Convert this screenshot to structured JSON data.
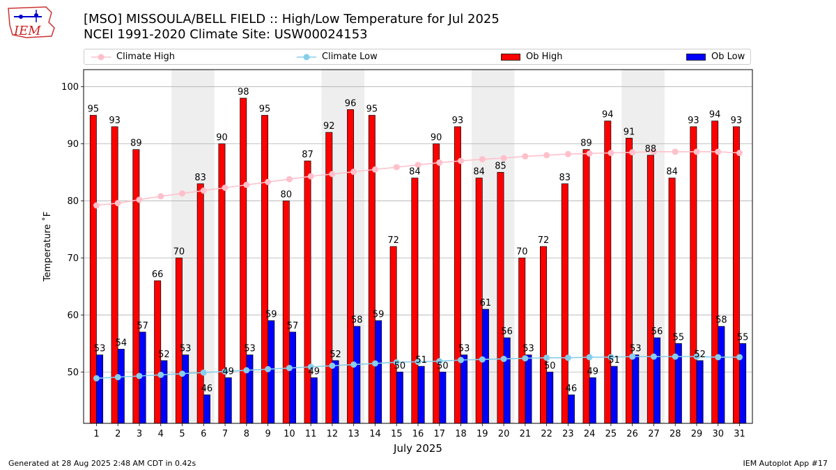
{
  "header": {
    "logo_text": "IEM",
    "title_line1": "[MSO] MISSOULA/BELL FIELD :: High/Low Temperature for Jul 2025",
    "title_line2": "NCEI 1991-2020 Climate Site: USW00024153"
  },
  "footer": {
    "left": "Generated at 28 Aug 2025 2:48 AM CDT in 0.42s",
    "right": "IEM Autoplot App #17"
  },
  "colors": {
    "ob_high": "#ff0000",
    "ob_low": "#0000ff",
    "climate_high": "#ffc0cb",
    "climate_low": "#87ceeb",
    "weekend_band": "#eeeeee",
    "grid": "#b0b0b0"
  },
  "chart_data": {
    "type": "bar",
    "title": "[MSO] MISSOULA/BELL FIELD :: High/Low Temperature for Jul 2025",
    "xlabel": "July 2025",
    "ylabel": "Temperature ˚F",
    "ylim": [
      41,
      103
    ],
    "yticks": [
      50,
      60,
      70,
      80,
      90,
      100
    ],
    "grid": true,
    "legend_position": "top",
    "categories": [
      1,
      2,
      3,
      4,
      5,
      6,
      7,
      8,
      9,
      10,
      11,
      12,
      13,
      14,
      15,
      16,
      17,
      18,
      19,
      20,
      21,
      22,
      23,
      24,
      25,
      26,
      27,
      28,
      29,
      30,
      31
    ],
    "highlight_day_pairs": [
      [
        5,
        6
      ],
      [
        12,
        13
      ],
      [
        19,
        20
      ],
      [
        26,
        27
      ]
    ],
    "series": [
      {
        "name": "Ob High",
        "kind": "bar",
        "values": [
          95,
          93,
          89,
          66,
          70,
          83,
          90,
          98,
          95,
          80,
          87,
          92,
          96,
          95,
          72,
          84,
          90,
          93,
          84,
          85,
          70,
          72,
          83,
          89,
          94,
          91,
          88,
          84,
          93,
          94,
          93
        ]
      },
      {
        "name": "Ob Low",
        "kind": "bar",
        "values": [
          53,
          54,
          57,
          52,
          53,
          46,
          49,
          53,
          59,
          57,
          49,
          52,
          58,
          59,
          50,
          51,
          50,
          53,
          61,
          56,
          53,
          50,
          46,
          49,
          51,
          53,
          56,
          55,
          52,
          58,
          55
        ]
      },
      {
        "name": "Climate High",
        "kind": "line",
        "values": [
          79.2,
          79.6,
          80.2,
          80.8,
          81.3,
          81.8,
          82.3,
          82.8,
          83.3,
          83.8,
          84.3,
          84.7,
          85.1,
          85.5,
          85.9,
          86.3,
          86.7,
          87.0,
          87.3,
          87.5,
          87.8,
          88.0,
          88.2,
          88.3,
          88.4,
          88.5,
          88.6,
          88.6,
          88.6,
          88.6,
          88.4
        ]
      },
      {
        "name": "Climate Low",
        "kind": "line",
        "values": [
          48.9,
          49.1,
          49.3,
          49.5,
          49.7,
          49.9,
          50.1,
          50.3,
          50.5,
          50.7,
          50.9,
          51.1,
          51.3,
          51.5,
          51.7,
          51.8,
          51.9,
          52.1,
          52.2,
          52.3,
          52.4,
          52.5,
          52.5,
          52.6,
          52.6,
          52.7,
          52.7,
          52.7,
          52.7,
          52.6,
          52.6
        ]
      }
    ]
  }
}
